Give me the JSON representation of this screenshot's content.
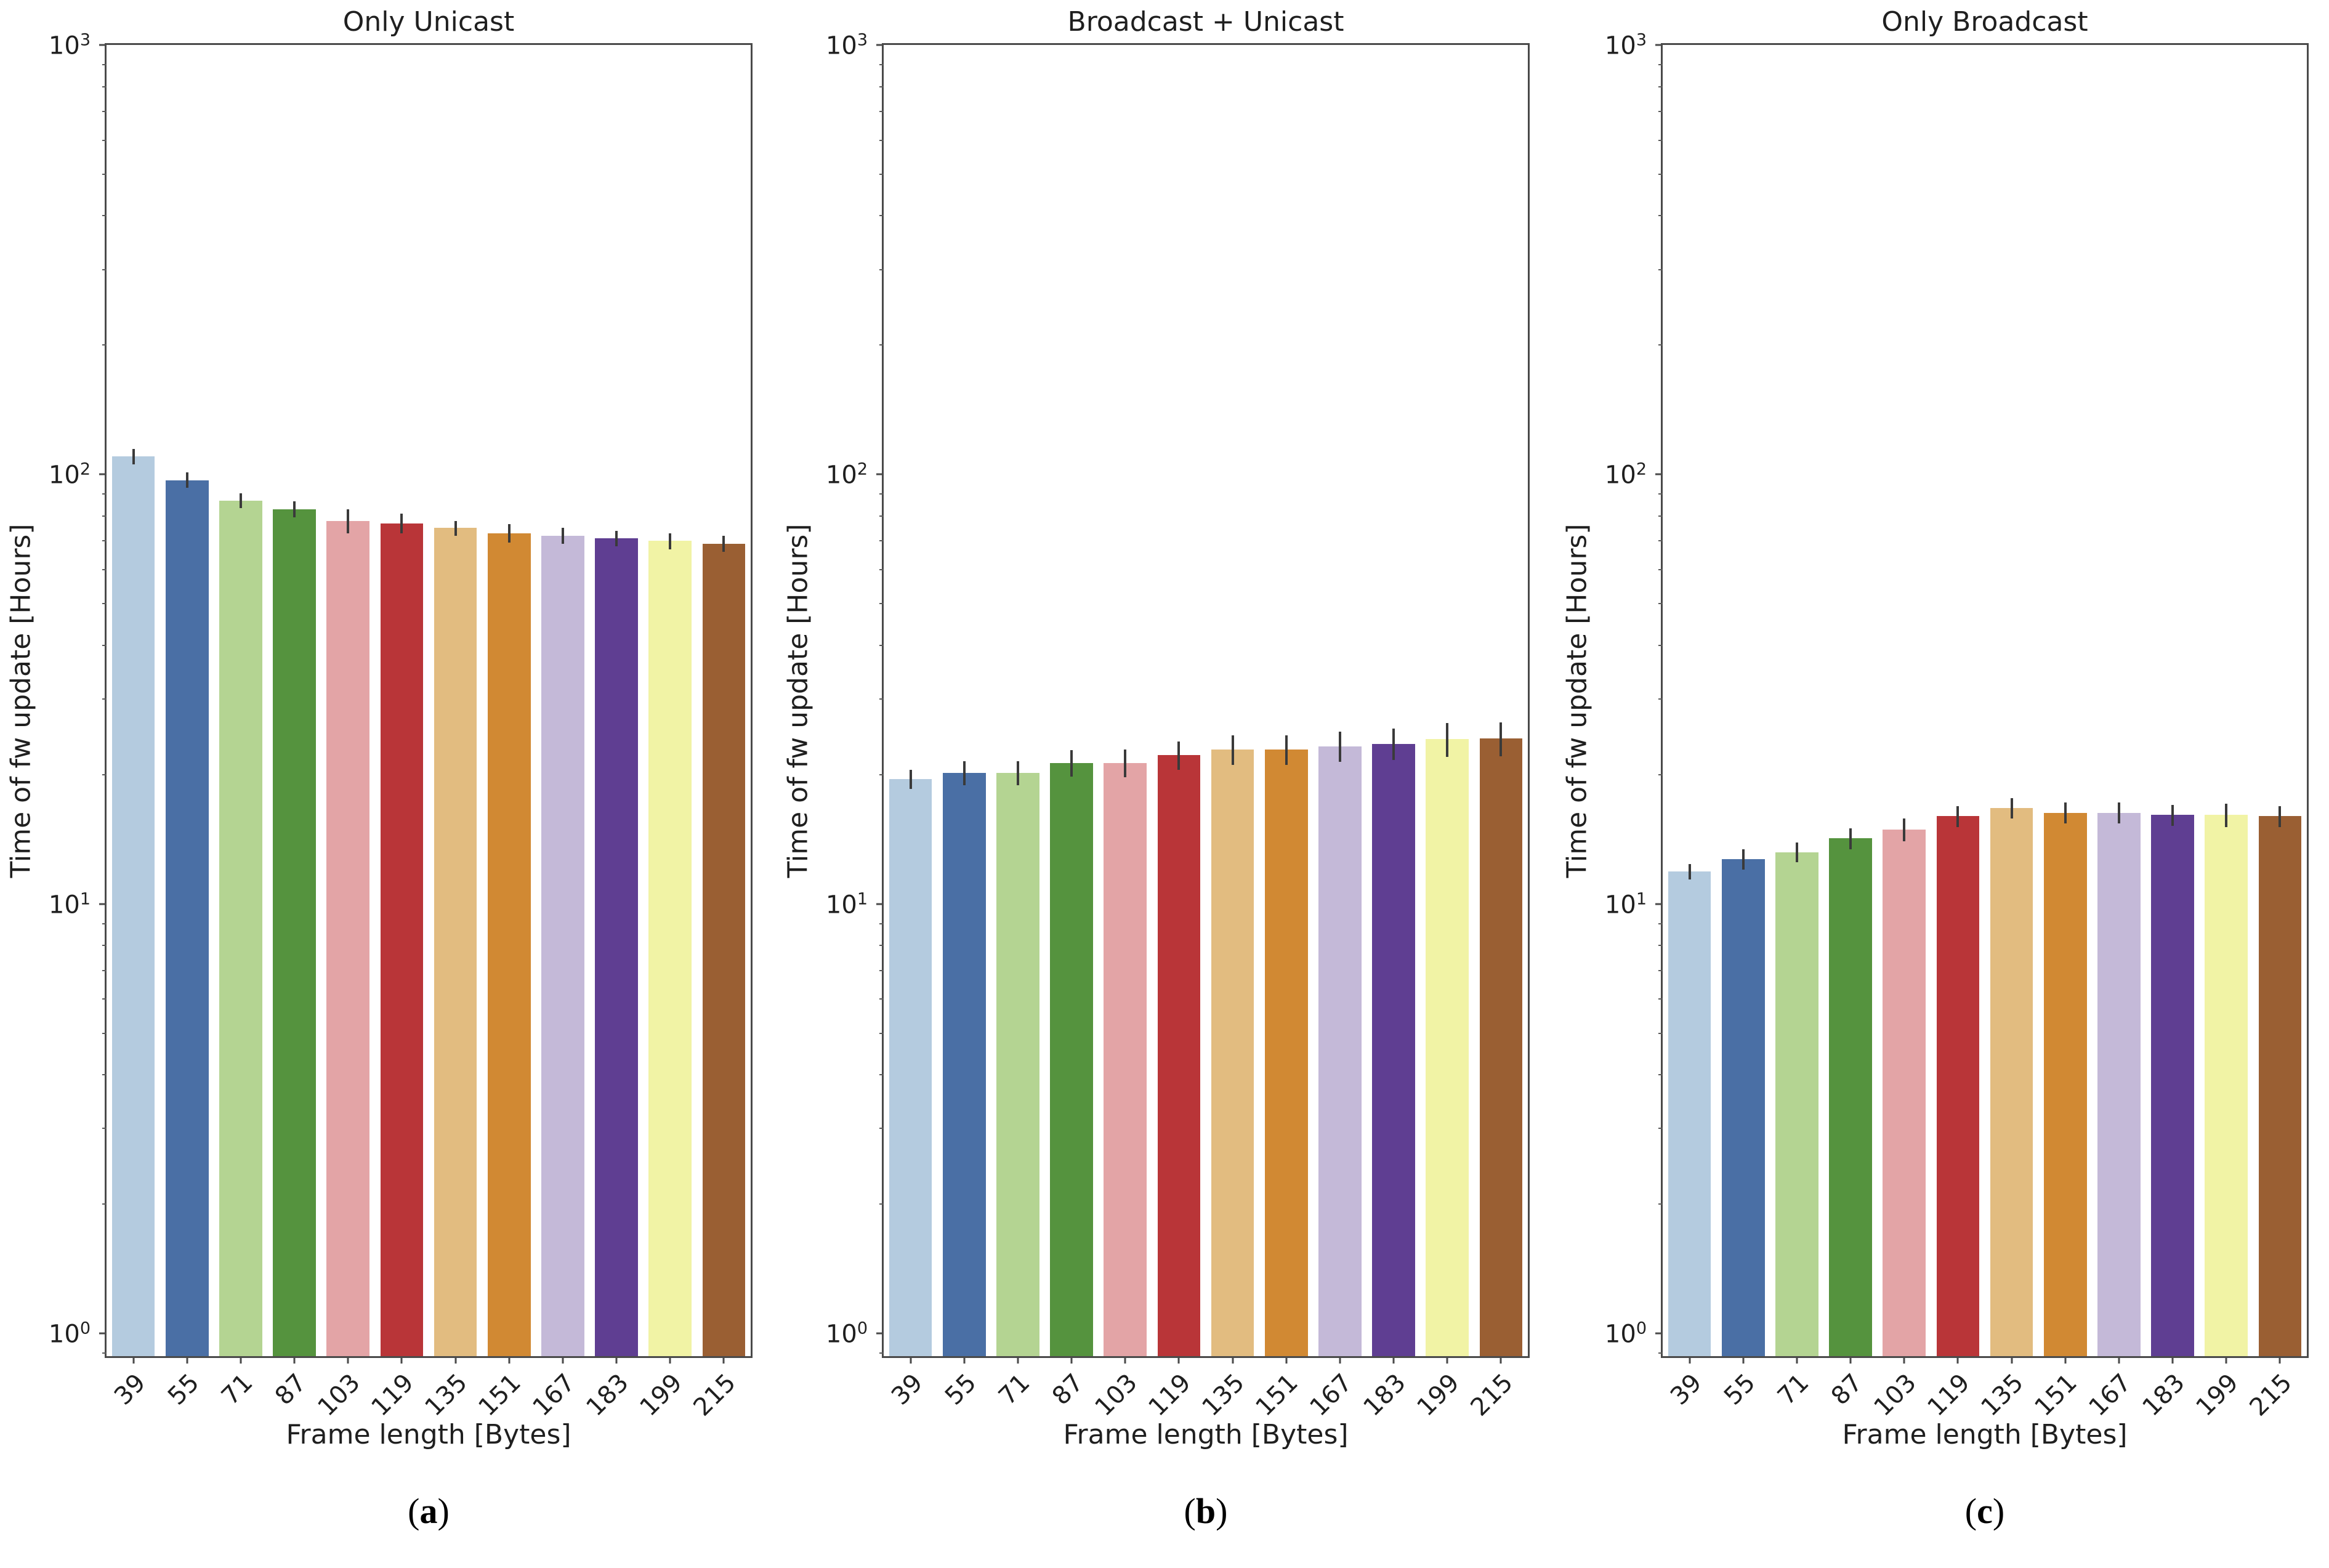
{
  "figure": {
    "background": "#ffffff",
    "text_color": "#1f1f1f",
    "spine_color": "#4a4a4a",
    "errorbar_color": "#3a3a3a",
    "palette": [
      "#b4cbdf",
      "#4a6fa5",
      "#b4d492",
      "#55933e",
      "#e3a4a6",
      "#b93538",
      "#e2bc80",
      "#d18933",
      "#c4b9d8",
      "#5f3e92",
      "#f1f3a5",
      "#9a5f33"
    ],
    "y_axis": {
      "scale": "log",
      "tick_exponents": [
        0,
        1,
        2,
        3
      ],
      "tick_labels": [
        "10⁰",
        "10¹",
        "10²",
        "10³"
      ]
    }
  },
  "chart_data": [
    {
      "type": "bar",
      "title": "Only Unicast",
      "panel": {
        "open": "(",
        "letter": "a",
        "close": ")"
      },
      "xlabel": "Frame length [Bytes]",
      "ylabel": "Time of fw update [Hours]",
      "yscale": "log",
      "ylim": [
        1,
        1000
      ],
      "grid": false,
      "legend": "none",
      "categories": [
        "39",
        "55",
        "71",
        "87",
        "103",
        "119",
        "135",
        "151",
        "167",
        "183",
        "199",
        "215"
      ],
      "values": [
        110,
        97,
        87,
        83,
        78,
        77,
        75,
        73,
        72,
        71,
        70,
        69
      ],
      "errors": [
        4.5,
        4,
        3.5,
        3.5,
        5,
        4,
        3,
        3.5,
        3,
        3,
        3,
        3
      ]
    },
    {
      "type": "bar",
      "title": "Broadcast + Unicast",
      "panel": {
        "open": "(",
        "letter": "b",
        "close": ")"
      },
      "xlabel": "Frame length [Bytes]",
      "ylabel": "Time of fw update [Hours]",
      "yscale": "log",
      "ylim": [
        1,
        1000
      ],
      "grid": false,
      "legend": "none",
      "categories": [
        "39",
        "55",
        "71",
        "87",
        "103",
        "119",
        "135",
        "151",
        "167",
        "183",
        "199",
        "215"
      ],
      "values": [
        19.5,
        20.2,
        20.2,
        21.3,
        21.3,
        22.2,
        22.9,
        22.9,
        23.3,
        23.6,
        24.2,
        24.3
      ],
      "errors": [
        1.0,
        1.3,
        1.3,
        1.5,
        1.6,
        1.7,
        1.8,
        1.8,
        1.9,
        2.0,
        2.2,
        2.2
      ]
    },
    {
      "type": "bar",
      "title": "Only Broadcast",
      "panel": {
        "open": "(",
        "letter": "c",
        "close": ")"
      },
      "xlabel": "Frame length [Bytes]",
      "ylabel": "Time of fw update [Hours]",
      "yscale": "log",
      "ylim": [
        1,
        1000
      ],
      "grid": false,
      "legend": "none",
      "categories": [
        "39",
        "55",
        "71",
        "87",
        "103",
        "119",
        "135",
        "151",
        "167",
        "183",
        "199",
        "215"
      ],
      "values": [
        11.9,
        12.7,
        13.2,
        14.2,
        14.9,
        16.0,
        16.7,
        16.3,
        16.3,
        16.1,
        16.1,
        16.0
      ],
      "errors": [
        0.5,
        0.7,
        0.7,
        0.8,
        0.9,
        0.9,
        0.9,
        0.9,
        0.9,
        0.9,
        1.0,
        0.9
      ]
    }
  ]
}
